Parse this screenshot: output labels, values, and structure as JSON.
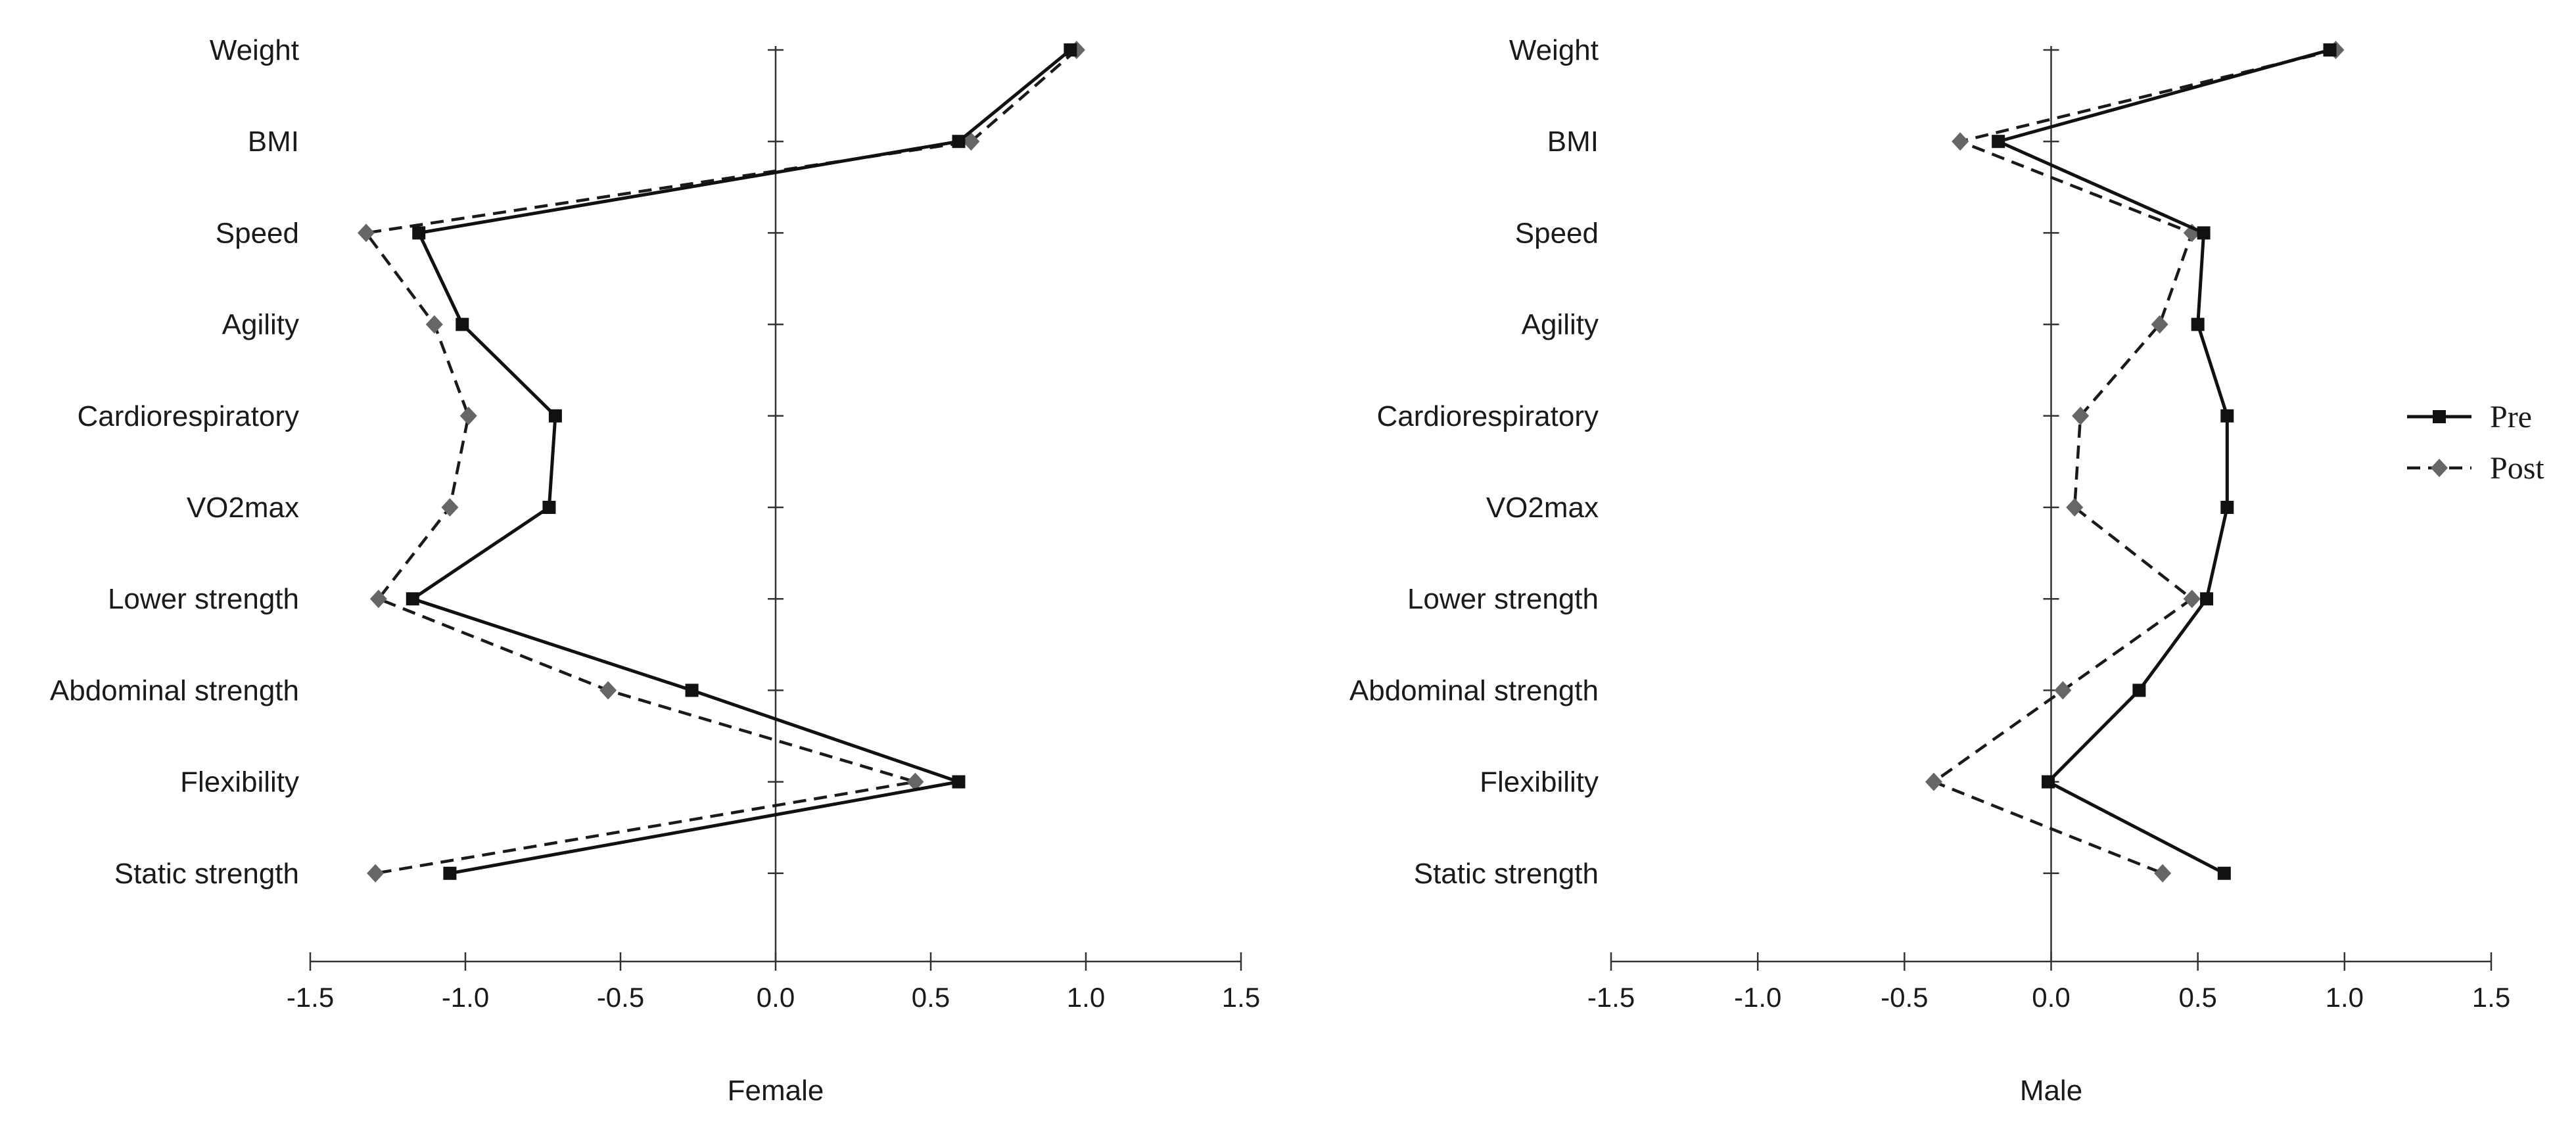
{
  "chart_data": {
    "type": "line",
    "orientation": "horizontal-profile",
    "categories": [
      "Weight",
      "BMI",
      "Speed",
      "Agility",
      "Cardiorespiratory",
      "VO2max",
      "Lower strength",
      "Abdominal strength",
      "Flexibility",
      "Static strength"
    ],
    "xlim": [
      -1.5,
      1.5
    ],
    "xticks": [
      "-1.5",
      "-1.0",
      "-0.5",
      "0.0",
      "0.5",
      "1.0",
      "1.5"
    ],
    "legend": {
      "position": "right",
      "entries": [
        "Pre",
        "Post"
      ]
    },
    "colors": {
      "pre": "#111111",
      "post": "#666666",
      "axis": "#333333"
    },
    "panels": [
      {
        "xlabel": "Female",
        "series": [
          {
            "name": "Pre",
            "style": "solid",
            "marker": "square",
            "values": [
              0.95,
              0.59,
              -1.15,
              -1.01,
              -0.71,
              -0.73,
              -1.17,
              -0.27,
              0.59,
              -1.05
            ]
          },
          {
            "name": "Post",
            "style": "dashed",
            "marker": "diamond",
            "values": [
              0.97,
              0.63,
              -1.32,
              -1.1,
              -0.99,
              -1.05,
              -1.28,
              -0.54,
              0.45,
              -1.29
            ]
          }
        ]
      },
      {
        "xlabel": "Male",
        "series": [
          {
            "name": "Pre",
            "style": "solid",
            "marker": "square",
            "values": [
              0.95,
              -0.18,
              0.52,
              0.5,
              0.6,
              0.6,
              0.53,
              0.3,
              -0.01,
              0.59
            ]
          },
          {
            "name": "Post",
            "style": "dashed",
            "marker": "diamond",
            "values": [
              0.97,
              -0.31,
              0.48,
              0.37,
              0.1,
              0.08,
              0.48,
              0.04,
              -0.4,
              0.38
            ]
          }
        ]
      }
    ]
  }
}
